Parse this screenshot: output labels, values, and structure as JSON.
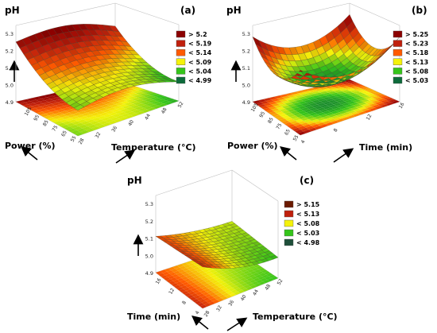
{
  "chart_data": [
    {
      "type": "surface",
      "panel_label": "(a)",
      "zlabel": "pH",
      "z_ticks": [
        "5.3",
        "5.2",
        "5.1",
        "5.0",
        "4.9"
      ],
      "zlim": [
        4.9,
        5.3
      ],
      "x_axis": {
        "label": "Power (%)",
        "ticks": [
          "105",
          "95",
          "85",
          "75",
          "65",
          "55"
        ]
      },
      "y_axis": {
        "label": "Temperature (°C)",
        "ticks": [
          "28",
          "32",
          "36",
          "40",
          "44",
          "48",
          "52"
        ]
      },
      "legend": [
        {
          "label": "> 5.2",
          "color": "#8b0000"
        },
        {
          "label": "< 5.19",
          "color": "#c0200d"
        },
        {
          "label": "< 5.14",
          "color": "#ff5a00"
        },
        {
          "label": "< 5.09",
          "color": "#f4f20a"
        },
        {
          "label": "< 5.04",
          "color": "#35c51a"
        },
        {
          "label": "< 4.99",
          "color": "#0d6b3a"
        }
      ]
    },
    {
      "type": "surface",
      "panel_label": "(b)",
      "zlabel": "pH",
      "z_ticks": [
        "5.3",
        "5.2",
        "5.1",
        "5.0",
        "4.9"
      ],
      "zlim": [
        4.9,
        5.3
      ],
      "x_axis": {
        "label": "Power (%)",
        "ticks": [
          "105",
          "95",
          "85",
          "75",
          "65",
          "55"
        ]
      },
      "y_axis": {
        "label": "Time (min)",
        "ticks": [
          "4",
          "8",
          "12",
          "16"
        ]
      },
      "legend": [
        {
          "label": "> 5.25",
          "color": "#8b0000"
        },
        {
          "label": "< 5.23",
          "color": "#c0200d"
        },
        {
          "label": "< 5.18",
          "color": "#ff5a00"
        },
        {
          "label": "< 5.13",
          "color": "#f4f20a"
        },
        {
          "label": "< 5.08",
          "color": "#35c51a"
        },
        {
          "label": "< 5.03",
          "color": "#0d6b3a"
        }
      ]
    },
    {
      "type": "surface",
      "panel_label": "(c)",
      "zlabel": "pH",
      "z_ticks": [
        "5.3",
        "5.2",
        "5.1",
        "5.0",
        "4.9"
      ],
      "zlim": [
        4.9,
        5.3
      ],
      "x_axis": {
        "label": "Time (min)",
        "ticks": [
          "16",
          "12",
          "8",
          "4"
        ]
      },
      "y_axis": {
        "label": "Temperature (°C)",
        "ticks": [
          "28",
          "32",
          "36",
          "40",
          "44",
          "48",
          "52"
        ]
      },
      "legend": [
        {
          "label": "> 5.15",
          "color": "#6b1a00"
        },
        {
          "label": "< 5.13",
          "color": "#c0200d"
        },
        {
          "label": "< 5.08",
          "color": "#f4f20a"
        },
        {
          "label": "< 5.03",
          "color": "#35c51a"
        },
        {
          "label": "< 4.98",
          "color": "#1f4f3a"
        }
      ]
    }
  ]
}
